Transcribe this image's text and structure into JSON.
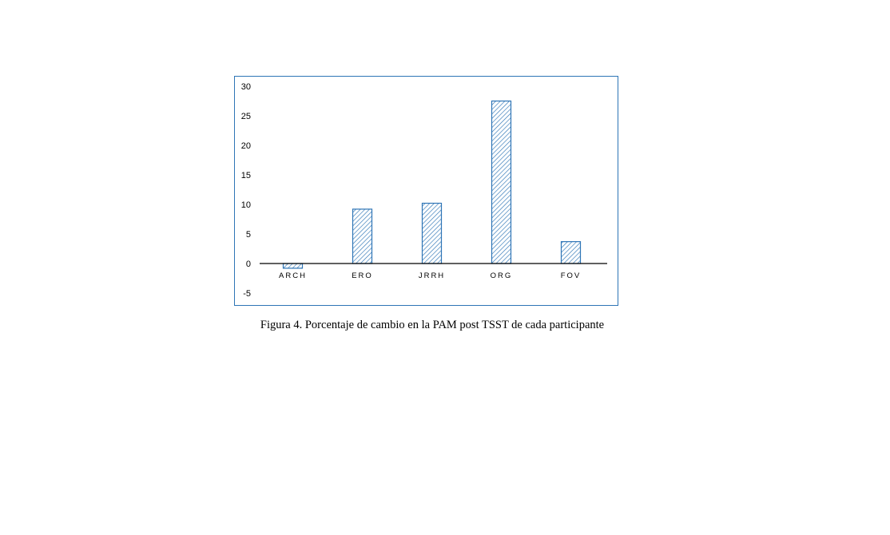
{
  "chart_data": {
    "type": "bar",
    "categories": [
      "ARCH",
      "ERO",
      "JRRH",
      "ORG",
      "FOV"
    ],
    "values": [
      -0.8,
      9.2,
      10.2,
      27.5,
      3.7
    ],
    "ylim": [
      -5,
      30
    ],
    "yticks": [
      30,
      25,
      20,
      15,
      10,
      5,
      0,
      -5
    ],
    "grid": false,
    "bar_color": "#2e75b6",
    "bar_fill": "diagonal-hatch",
    "caption": "Figura 4. Porcentaje de cambio en la PAM post TSST de cada participante"
  }
}
